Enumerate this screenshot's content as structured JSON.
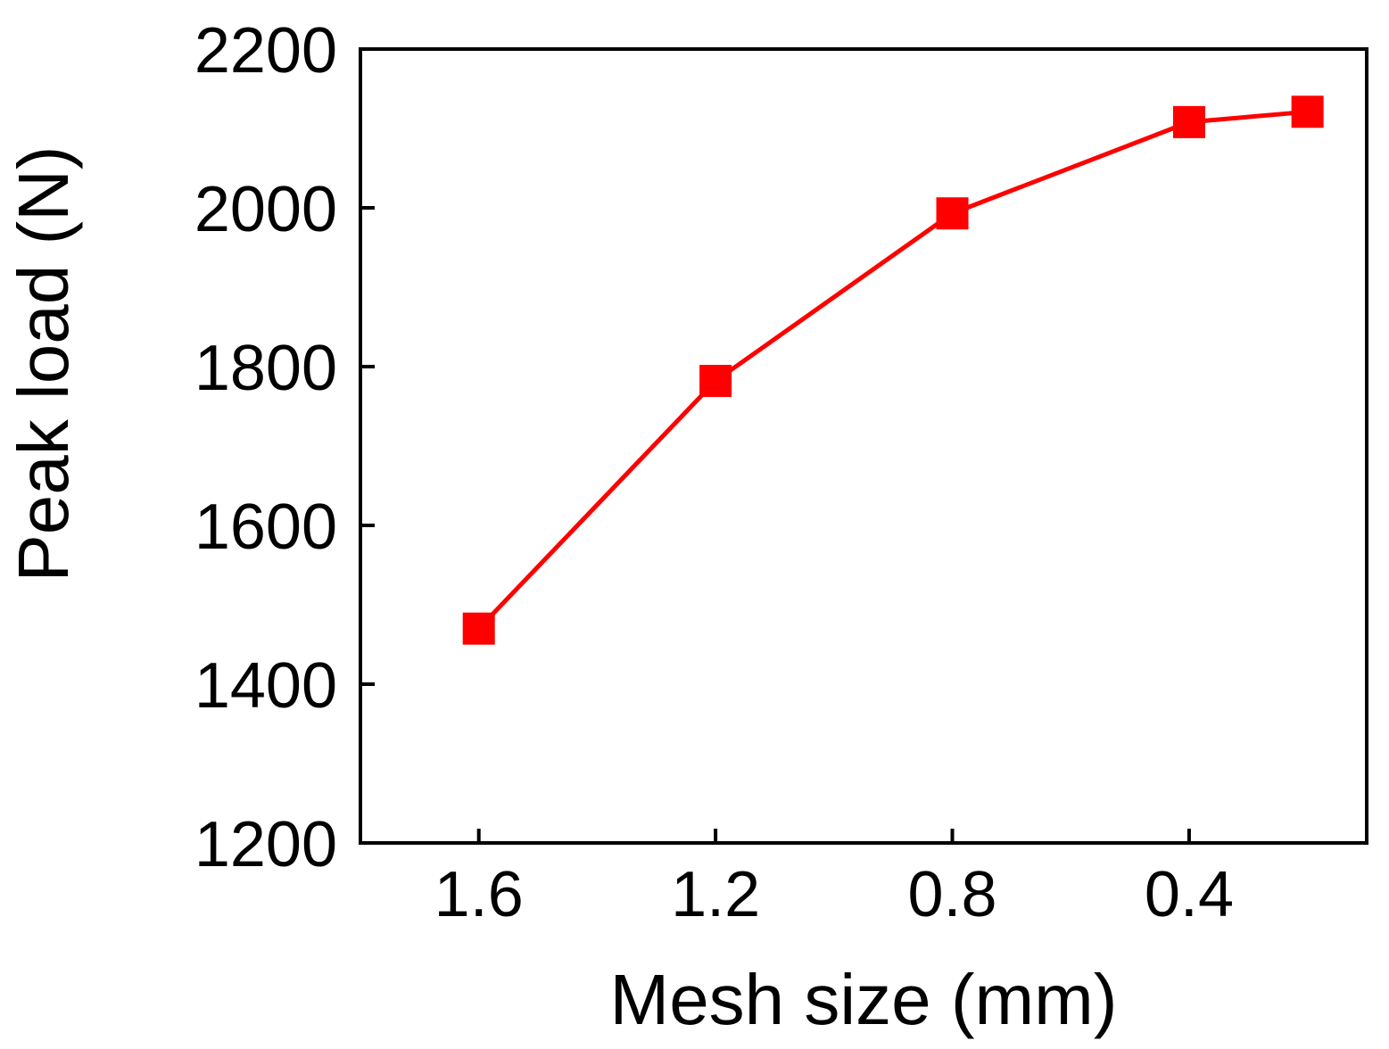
{
  "chart_data": {
    "type": "line",
    "xlabel": "Mesh size (mm)",
    "ylabel": "Peak load (N)",
    "x_reversed": true,
    "xlim": [
      1.8,
      0.1
    ],
    "ylim": [
      1200,
      2200
    ],
    "x_ticks": [
      1.6,
      1.2,
      0.8,
      0.4
    ],
    "x_tick_labels": [
      "1.6",
      "1.2",
      "0.8",
      "0.4"
    ],
    "y_ticks": [
      1200,
      1400,
      1600,
      1800,
      2000,
      2200
    ],
    "y_tick_labels": [
      "1200",
      "1400",
      "1600",
      "1800",
      "2000",
      "2200"
    ],
    "grid": false,
    "series": [
      {
        "color": "#ff0000",
        "marker": "square",
        "x": [
          1.6,
          1.2,
          0.8,
          0.4,
          0.2
        ],
        "y": [
          1470,
          1782,
          1993,
          2108,
          2121
        ]
      }
    ]
  }
}
